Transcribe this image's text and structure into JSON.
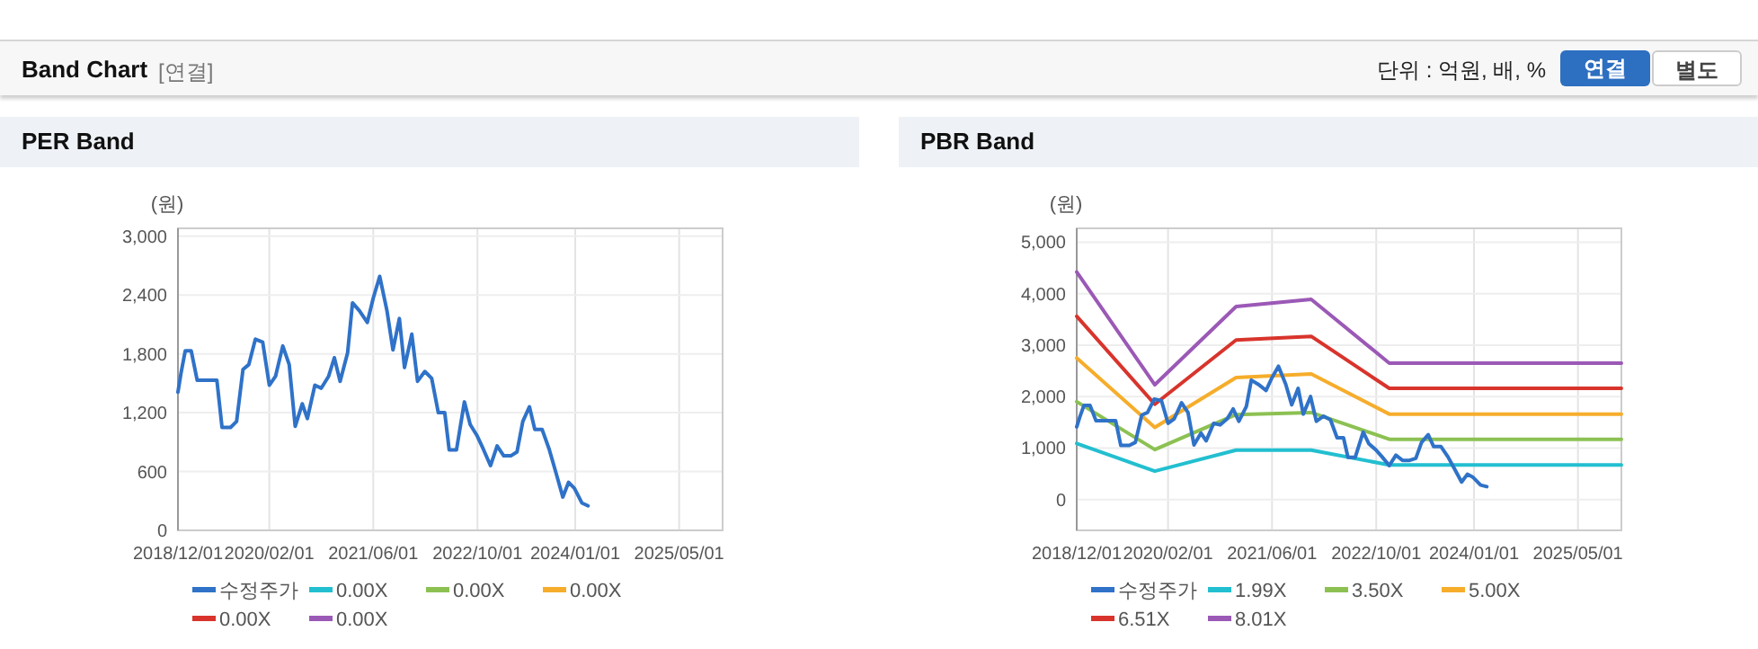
{
  "chart_data": [
    {
      "type": "line",
      "title": "PER Band",
      "ylabel": "(원)",
      "annotations": [
        "Band Chart",
        "[연결]",
        "단위 : 억원, 배, %",
        "연결",
        "별도"
      ],
      "xlim": [
        "2018-12-01",
        "2025-11-20"
      ],
      "ylim": [
        0,
        3080
      ],
      "xticks": [
        {
          "value": "2018-12-01",
          "label": "2018/12/01"
        },
        {
          "value": "2020-02-01",
          "label": "2020/02/01"
        },
        {
          "value": "2021-06-01",
          "label": "2021/06/01"
        },
        {
          "value": "2022-10-01",
          "label": "2022/10/01"
        },
        {
          "value": "2024-01-01",
          "label": "2024/01/01"
        },
        {
          "value": "2025-05-01",
          "label": "2025/05/01"
        }
      ],
      "yticks": [
        0,
        {
          "value": 600,
          "label": "600"
        },
        {
          "value": 1200,
          "label": "1,200"
        },
        {
          "value": 1800,
          "label": "1,800"
        },
        {
          "value": 2400,
          "label": "2,400"
        },
        {
          "value": 3000,
          "label": "3,000"
        }
      ],
      "grid": true,
      "legend": "bottom",
      "series": [
        {
          "name": "수정주가",
          "color": "#2f72c8",
          "x": [
            "2018-12-01",
            "2018-12-15",
            "2019-01-04",
            "2019-02-01",
            "2019-03-01",
            "2019-06-01",
            "2019-06-25",
            "2019-08-04",
            "2019-09-01",
            "2019-10-01",
            "2019-10-28",
            "2019-11-28",
            "2020-01-01",
            "2020-02-01",
            "2020-03-01",
            "2020-04-04",
            "2020-05-04",
            "2020-06-01",
            "2020-07-04",
            "2020-07-28",
            "2020-09-01",
            "2020-10-01",
            "2020-11-04",
            "2020-12-01",
            "2020-12-28",
            "2021-02-01",
            "2021-02-24",
            "2021-03-28",
            "2021-05-04",
            "2021-06-01",
            "2021-07-01",
            "2021-08-04",
            "2021-09-01",
            "2021-10-01",
            "2021-10-25",
            "2021-11-28",
            "2021-12-25",
            "2022-01-28",
            "2022-03-01",
            "2022-04-01",
            "2022-05-01",
            "2022-05-22",
            "2022-06-25",
            "2022-08-01",
            "2022-08-28",
            "2022-09-28",
            "2022-10-28",
            "2022-12-01",
            "2023-01-01",
            "2023-02-01",
            "2023-03-06",
            "2023-04-04",
            "2023-05-01",
            "2023-06-01",
            "2023-06-26",
            "2023-07-30",
            "2023-09-01",
            "2023-10-04",
            "2023-11-04",
            "2023-12-01",
            "2023-12-28",
            "2024-02-01",
            "2024-03-01"
          ],
          "values": [
            1410,
            1600,
            1830,
            1830,
            1530,
            1530,
            1050,
            1050,
            1110,
            1640,
            1690,
            1950,
            1920,
            1480,
            1570,
            1880,
            1690,
            1060,
            1290,
            1140,
            1480,
            1450,
            1570,
            1760,
            1520,
            1810,
            2320,
            2240,
            2120,
            2370,
            2590,
            2240,
            1840,
            2160,
            1660,
            2000,
            1520,
            1620,
            1550,
            1200,
            1200,
            820,
            820,
            1310,
            1080,
            970,
            830,
            660,
            860,
            760,
            760,
            800,
            1110,
            1260,
            1030,
            1030,
            830,
            580,
            340,
            490,
            430,
            280,
            250
          ]
        },
        {
          "name": "0.00X",
          "color": "#22bfd0"
        },
        {
          "name": "0.00X",
          "color": "#8cc152"
        },
        {
          "name": "0.00X",
          "color": "#f6ad2b"
        },
        {
          "name": "0.00X",
          "color": "#d8342c"
        },
        {
          "name": "0.00X",
          "color": "#9b59b6"
        }
      ]
    },
    {
      "type": "line",
      "title": "PBR Band",
      "ylabel": "(원)",
      "xlim": [
        "2018-12-01",
        "2025-11-20"
      ],
      "ylim": [
        -600,
        5270
      ],
      "xticks": [
        {
          "value": "2018-12-01",
          "label": "2018/12/01"
        },
        {
          "value": "2020-02-01",
          "label": "2020/02/01"
        },
        {
          "value": "2021-06-01",
          "label": "2021/06/01"
        },
        {
          "value": "2022-10-01",
          "label": "2022/10/01"
        },
        {
          "value": "2024-01-01",
          "label": "2024/01/01"
        },
        {
          "value": "2025-05-01",
          "label": "2025/05/01"
        }
      ],
      "yticks": [
        0,
        {
          "value": 1000,
          "label": "1,000"
        },
        {
          "value": 2000,
          "label": "2,000"
        },
        {
          "value": 3000,
          "label": "3,000"
        },
        {
          "value": 4000,
          "label": "4,000"
        },
        {
          "value": 5000,
          "label": "5,000"
        }
      ],
      "grid": true,
      "legend": "bottom",
      "series": [
        {
          "name": "수정주가",
          "color": "#2f72c8",
          "x": [
            "2018-12-01",
            "2018-12-15",
            "2019-01-04",
            "2019-02-01",
            "2019-03-01",
            "2019-06-01",
            "2019-06-25",
            "2019-08-04",
            "2019-09-01",
            "2019-10-01",
            "2019-10-28",
            "2019-11-28",
            "2020-01-01",
            "2020-02-01",
            "2020-03-01",
            "2020-04-04",
            "2020-05-04",
            "2020-06-01",
            "2020-07-04",
            "2020-07-28",
            "2020-09-01",
            "2020-10-01",
            "2020-11-04",
            "2020-12-01",
            "2020-12-28",
            "2021-02-01",
            "2021-02-24",
            "2021-03-28",
            "2021-05-04",
            "2021-06-01",
            "2021-07-01",
            "2021-08-04",
            "2021-09-01",
            "2021-10-01",
            "2021-10-25",
            "2021-11-28",
            "2021-12-25",
            "2022-01-28",
            "2022-03-01",
            "2022-04-01",
            "2022-05-01",
            "2022-05-22",
            "2022-06-25",
            "2022-08-01",
            "2022-08-28",
            "2022-09-28",
            "2022-10-28",
            "2022-12-01",
            "2023-01-01",
            "2023-02-01",
            "2023-03-06",
            "2023-04-04",
            "2023-05-01",
            "2023-06-01",
            "2023-06-26",
            "2023-07-30",
            "2023-09-01",
            "2023-10-04",
            "2023-11-04",
            "2023-12-01",
            "2023-12-28",
            "2024-02-01",
            "2024-03-01"
          ],
          "values": [
            1410,
            1600,
            1830,
            1830,
            1530,
            1530,
            1050,
            1050,
            1110,
            1640,
            1690,
            1950,
            1920,
            1480,
            1570,
            1880,
            1690,
            1060,
            1290,
            1140,
            1480,
            1450,
            1570,
            1760,
            1520,
            1810,
            2320,
            2240,
            2120,
            2370,
            2590,
            2240,
            1840,
            2160,
            1660,
            2000,
            1520,
            1620,
            1550,
            1200,
            1200,
            820,
            820,
            1310,
            1080,
            970,
            830,
            660,
            860,
            760,
            760,
            800,
            1110,
            1260,
            1030,
            1030,
            830,
            580,
            340,
            490,
            430,
            280,
            250
          ]
        },
        {
          "name": "1.99X",
          "color": "#22bfd0",
          "x": [
            "2018-12-01",
            "2019-12-01",
            "2020-12-15",
            "2021-12-01",
            "2022-12-01",
            "2025-11-20"
          ],
          "values": [
            1090,
            550,
            960,
            960,
            670,
            670
          ]
        },
        {
          "name": "3.50X",
          "color": "#8cc152",
          "x": [
            "2018-12-01",
            "2019-12-01",
            "2020-12-15",
            "2021-12-01",
            "2022-12-01",
            "2025-11-20"
          ],
          "values": [
            1900,
            970,
            1650,
            1690,
            1170,
            1170
          ]
        },
        {
          "name": "5.00X",
          "color": "#f6ad2b",
          "x": [
            "2018-12-01",
            "2019-12-01",
            "2020-12-15",
            "2021-12-01",
            "2022-12-01",
            "2025-11-20"
          ],
          "values": [
            2750,
            1400,
            2370,
            2440,
            1660,
            1660
          ]
        },
        {
          "name": "6.51X",
          "color": "#d8342c",
          "x": [
            "2018-12-01",
            "2019-12-01",
            "2020-12-15",
            "2021-12-01",
            "2022-12-01",
            "2025-11-20"
          ],
          "values": [
            3560,
            1850,
            3100,
            3170,
            2160,
            2160
          ]
        },
        {
          "name": "8.01X",
          "color": "#9b59b6",
          "x": [
            "2018-12-01",
            "2019-12-01",
            "2020-12-15",
            "2021-12-01",
            "2022-12-01",
            "2025-11-20"
          ],
          "values": [
            4420,
            2230,
            3750,
            3890,
            2650,
            2650
          ]
        }
      ]
    }
  ]
}
